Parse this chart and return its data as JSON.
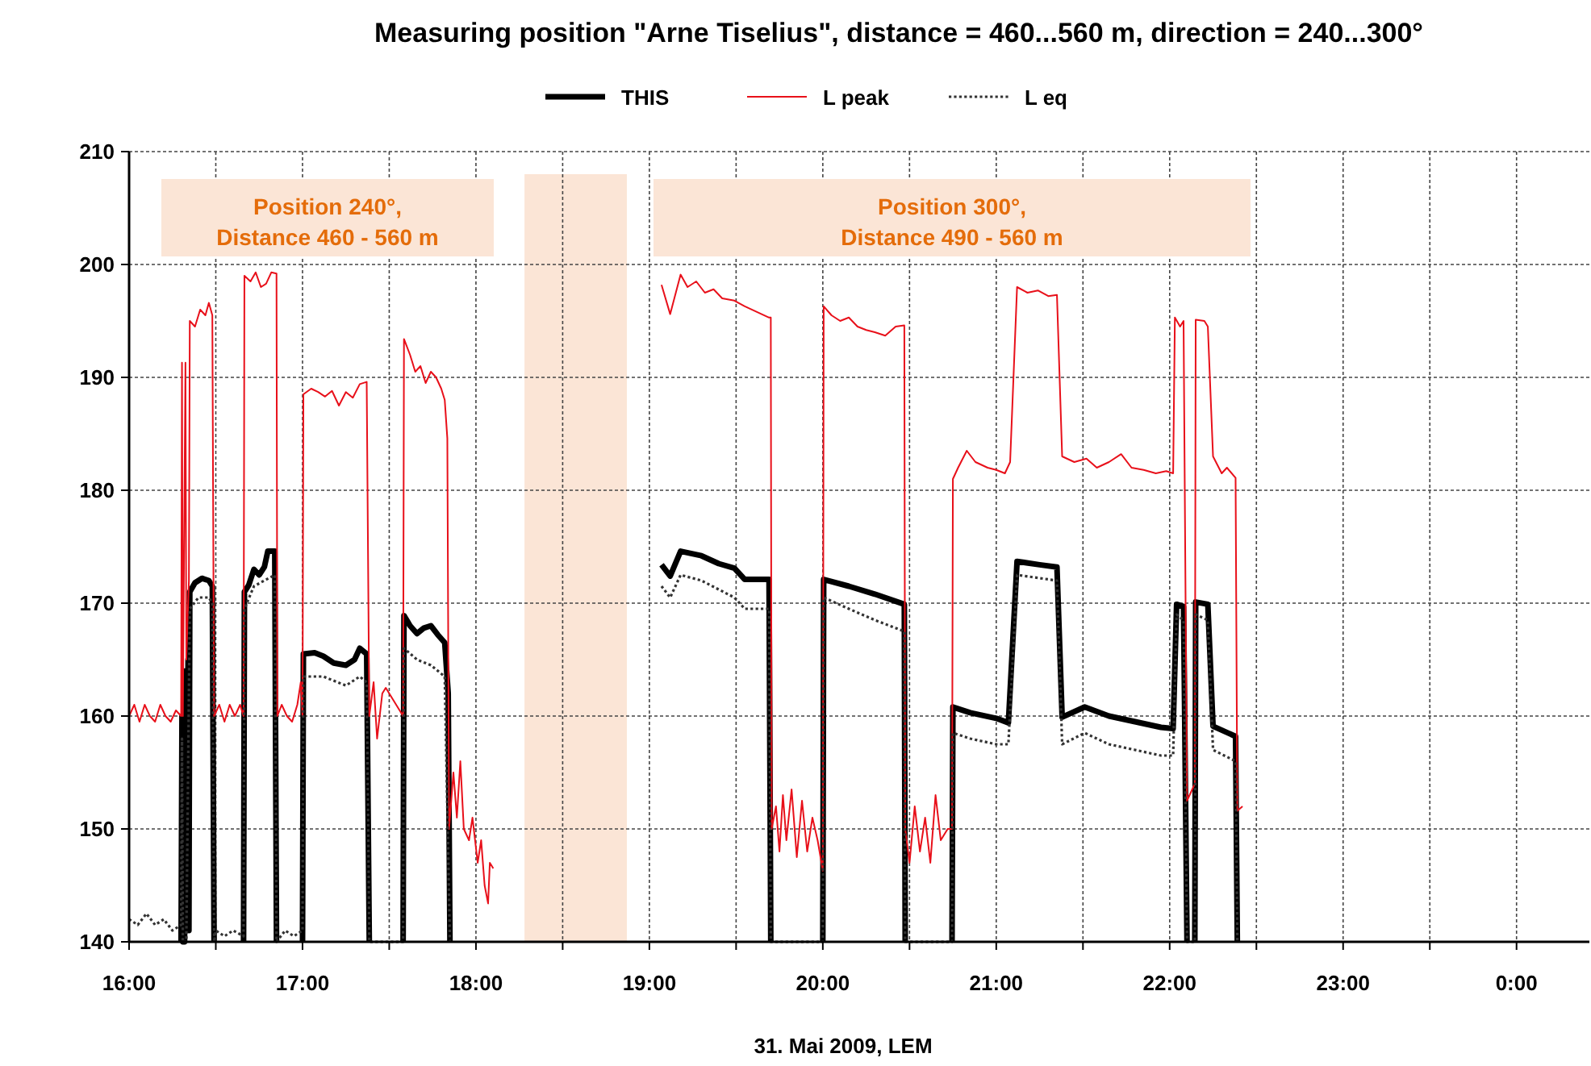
{
  "chart_data": {
    "type": "line",
    "title": "Measuring position \"Arne Tiselius\", distance = 460...560 m, direction = 240...300°",
    "xlabel": "31. Mai 2009, LEM",
    "annotations": [
      "Position 240°,\nDistance 460 - 560 m",
      "Position 300°,\nDistance 490 - 560 m"
    ],
    "xlim": [
      16,
      24.42
    ],
    "ylim": [
      140,
      210
    ],
    "xticks": [
      {
        "value": 16,
        "label": "16:00"
      },
      {
        "value": 16.5,
        "label": null
      },
      {
        "value": 17,
        "label": "17:00"
      },
      {
        "value": 17.5,
        "label": null
      },
      {
        "value": 18,
        "label": "18:00"
      },
      {
        "value": 18.5,
        "label": null
      },
      {
        "value": 19,
        "label": "19:00"
      },
      {
        "value": 19.5,
        "label": null
      },
      {
        "value": 20,
        "label": "20:00"
      },
      {
        "value": 20.5,
        "label": null
      },
      {
        "value": 21,
        "label": "21:00"
      },
      {
        "value": 21.5,
        "label": null
      },
      {
        "value": 22,
        "label": "22:00"
      },
      {
        "value": 22.5,
        "label": null
      },
      {
        "value": 23,
        "label": "23:00"
      },
      {
        "value": 23.5,
        "label": null
      },
      {
        "value": 24,
        "label": "0:00"
      }
    ],
    "yticks": [
      140,
      150,
      160,
      170,
      180,
      190,
      200,
      210
    ],
    "grid": true,
    "legend": "top",
    "marker": "none",
    "bands": [
      {
        "axis": "x",
        "from": 18.28,
        "to": 18.87,
        "color": "#fbe5d6"
      }
    ],
    "series": [
      {
        "name": "THIS",
        "color": "#000000",
        "line_style": "solid",
        "x": [
          16.3,
          16.305,
          16.31,
          16.315,
          16.32,
          16.325,
          16.33,
          16.34,
          16.345,
          16.35,
          16.38,
          16.42,
          16.46,
          16.48,
          16.49,
          null,
          16.66,
          16.665,
          16.69,
          16.72,
          16.75,
          16.78,
          16.8,
          16.84,
          16.85,
          null,
          17,
          17.005,
          17.07,
          17.12,
          17.18,
          17.25,
          17.3,
          17.33,
          17.37,
          17.385,
          null,
          17.58,
          17.585,
          17.62,
          17.66,
          17.7,
          17.74,
          17.78,
          17.82,
          17.84,
          17.85,
          null,
          19.07,
          19.12,
          19.18,
          19.3,
          19.4,
          19.49,
          19.55,
          19.69,
          19.7,
          null,
          20,
          20.005,
          20.15,
          20.3,
          20.47,
          20.475,
          null,
          20.745,
          20.75,
          20.85,
          21,
          21.07,
          21.12,
          21.25,
          21.35,
          21.38,
          21.51,
          21.65,
          21.8,
          21.95,
          22.02,
          22.04,
          22.08,
          22.1,
          null,
          22.145,
          22.15,
          22.22,
          22.25,
          22.38,
          22.39
        ],
        "values": [
          140,
          160,
          140,
          162,
          140,
          164,
          141,
          165,
          141,
          171,
          171.8,
          172.2,
          172,
          171.5,
          140,
          null,
          140,
          171,
          171.6,
          173,
          172.5,
          173.2,
          174.6,
          174.6,
          140,
          null,
          140,
          165.5,
          165.6,
          165.3,
          164.7,
          164.5,
          165,
          166,
          165.5,
          140,
          null,
          140,
          168.9,
          168,
          167.3,
          167.8,
          168,
          167.2,
          166.5,
          162,
          140,
          null,
          173.4,
          172.4,
          174.6,
          174.2,
          173.5,
          173.1,
          172.1,
          172.1,
          140,
          null,
          140,
          172.1,
          171.5,
          170.8,
          169.9,
          140,
          null,
          140,
          160.8,
          160.3,
          159.8,
          159.4,
          173.7,
          173.4,
          173.2,
          159.9,
          160.8,
          160,
          159.5,
          159,
          158.9,
          169.9,
          169.7,
          140,
          null,
          140,
          170.1,
          169.9,
          159.1,
          158.2,
          140
        ]
      },
      {
        "name": "L peak",
        "color": "#e8101a",
        "line_style": "solid",
        "x": [
          16,
          16.03,
          16.06,
          16.09,
          16.12,
          16.15,
          16.18,
          16.21,
          16.24,
          16.27,
          16.3,
          16.305,
          16.31,
          16.325,
          16.33,
          16.345,
          16.35,
          16.38,
          16.41,
          16.44,
          16.46,
          16.48,
          16.49,
          16.52,
          16.55,
          16.58,
          16.61,
          16.64,
          16.66,
          16.665,
          16.7,
          16.73,
          16.76,
          16.79,
          16.82,
          16.85,
          16.855,
          16.88,
          16.91,
          16.94,
          16.97,
          16.99,
          17,
          17.005,
          17.05,
          17.09,
          17.13,
          17.17,
          17.21,
          17.25,
          17.29,
          17.33,
          17.37,
          17.385,
          17.41,
          17.43,
          17.46,
          17.48,
          17.58,
          17.585,
          17.62,
          17.65,
          17.68,
          17.71,
          17.74,
          17.77,
          17.8,
          17.82,
          17.835,
          17.845,
          17.87,
          17.89,
          17.91,
          17.93,
          17.96,
          17.98,
          18.01,
          18.03,
          18.05,
          18.07,
          18.08,
          18.1,
          null,
          19.07,
          19.12,
          19.18,
          19.22,
          19.27,
          19.32,
          19.37,
          19.42,
          19.49,
          19.55,
          19.62,
          19.69,
          19.7,
          19.705,
          19.73,
          19.75,
          19.77,
          19.79,
          19.82,
          19.85,
          19.88,
          19.91,
          19.94,
          19.97,
          20,
          20.005,
          20.05,
          20.1,
          20.15,
          20.2,
          20.25,
          20.3,
          20.36,
          20.42,
          20.47,
          20.475,
          20.5,
          20.53,
          20.56,
          20.59,
          20.62,
          20.65,
          20.68,
          20.72,
          20.745,
          20.75,
          20.78,
          20.83,
          20.88,
          20.95,
          21,
          21.05,
          21.08,
          21.12,
          21.18,
          21.24,
          21.3,
          21.35,
          21.38,
          21.45,
          21.52,
          21.58,
          21.65,
          21.72,
          21.78,
          21.85,
          21.92,
          21.98,
          22.02,
          22.03,
          22.06,
          22.08,
          22.1,
          22.145,
          22.15,
          22.2,
          22.22,
          22.25,
          22.3,
          22.33,
          22.38,
          22.39,
          22.42
        ],
        "values": [
          160,
          161,
          159.5,
          161,
          160,
          159.5,
          161,
          160,
          159.5,
          160.5,
          160,
          191.3,
          160,
          191.3,
          165,
          172,
          195,
          194.5,
          196,
          195.5,
          196.6,
          195.5,
          160,
          161,
          159.5,
          161,
          160,
          161,
          160,
          199,
          198.5,
          199.3,
          198,
          198.3,
          199.3,
          199.2,
          160,
          161,
          160,
          159.5,
          161,
          163,
          160,
          188.5,
          189,
          188.7,
          188.3,
          188.8,
          187.5,
          188.7,
          188.2,
          189.4,
          189.6,
          160,
          163,
          158,
          162,
          162.5,
          160,
          193.4,
          192,
          190.5,
          191,
          189.5,
          190.5,
          190,
          189,
          188,
          184.6,
          150,
          155,
          151,
          156,
          150,
          149,
          151,
          147,
          149,
          145,
          143.4,
          147,
          146.5,
          null,
          198.2,
          195.6,
          199.1,
          198,
          198.5,
          197.5,
          197.8,
          197,
          196.8,
          196.3,
          195.8,
          195.3,
          195.3,
          150,
          152,
          148,
          153,
          149,
          153.5,
          147.5,
          152.5,
          148,
          151,
          149,
          146.3,
          196.3,
          195.5,
          195,
          195.3,
          194.5,
          194.2,
          194,
          193.7,
          194.5,
          194.6,
          150,
          147,
          152,
          148,
          151,
          147,
          153,
          149,
          150,
          150,
          181,
          182,
          183.5,
          182.5,
          182,
          181.8,
          181.5,
          182.5,
          198,
          197.5,
          197.7,
          197.2,
          197.3,
          183,
          182.5,
          182.8,
          182,
          182.5,
          183.2,
          182,
          181.8,
          181.5,
          181.7,
          181.5,
          195.3,
          194.5,
          195,
          152.5,
          154,
          195.1,
          195,
          194.5,
          183,
          181.5,
          182,
          181.1,
          151.6,
          152
        ]
      },
      {
        "name": "L eq",
        "color": "#333333",
        "line_style": "dotted",
        "x": [
          16,
          16.05,
          16.1,
          16.15,
          16.2,
          16.25,
          16.3,
          16.305,
          16.31,
          16.33,
          16.35,
          16.4,
          16.46,
          16.48,
          16.49,
          16.5,
          16.55,
          16.6,
          16.66,
          16.665,
          16.72,
          16.78,
          16.84,
          16.85,
          16.9,
          16.95,
          17,
          17.005,
          17.12,
          17.25,
          17.33,
          17.37,
          17.385,
          17.58,
          17.585,
          17.66,
          17.74,
          17.82,
          17.85,
          null,
          19.07,
          19.12,
          19.18,
          19.3,
          19.49,
          19.55,
          19.69,
          19.7,
          20,
          20.005,
          20.15,
          20.3,
          20.47,
          20.475,
          20.745,
          20.75,
          20.85,
          21,
          21.07,
          21.12,
          21.35,
          21.38,
          21.51,
          21.65,
          21.8,
          21.95,
          22.02,
          22.04,
          22.08,
          22.1,
          22.145,
          22.15,
          22.22,
          22.25,
          22.38,
          22.39
        ],
        "values": [
          142,
          141.5,
          142.5,
          141.5,
          142,
          141,
          141.5,
          158,
          140,
          140,
          169.5,
          170.5,
          170.5,
          170,
          140,
          141,
          140.5,
          141,
          140.5,
          169.5,
          171.5,
          172,
          172.5,
          140,
          141,
          140.5,
          141,
          163.5,
          163.5,
          162.7,
          163.5,
          163,
          140,
          140,
          166,
          165,
          164.5,
          163.5,
          140,
          null,
          171.5,
          170.5,
          172.5,
          172,
          170.5,
          169.5,
          169.5,
          140,
          140,
          170.5,
          169.5,
          168.5,
          167.5,
          140,
          140,
          158.5,
          158,
          157.5,
          157.5,
          172.5,
          172,
          157.5,
          158.5,
          157.5,
          157,
          156.5,
          156.5,
          169,
          168.5,
          140,
          140,
          169,
          168.5,
          157,
          156,
          140
        ]
      }
    ]
  }
}
